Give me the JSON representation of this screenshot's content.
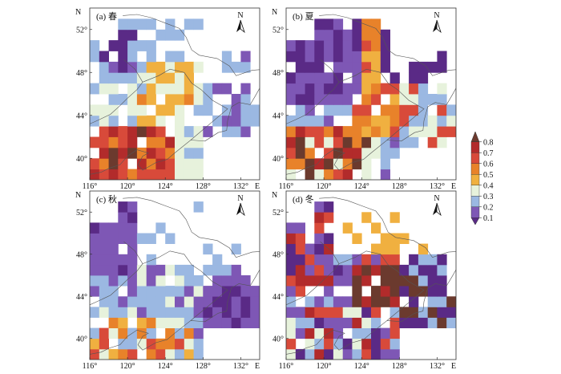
{
  "panels": [
    {
      "id": "a",
      "label": "(a) 春"
    },
    {
      "id": "b",
      "label": "(b) 夏"
    },
    {
      "id": "c",
      "label": "(c) 秋"
    },
    {
      "id": "d",
      "label": "(d) 冬"
    }
  ],
  "north_letter": "N",
  "east_letter": "E",
  "compass_letter": "N",
  "lat_ticks": [
    "52°",
    "48°",
    "44°",
    "40°"
  ],
  "lon_ticks": [
    "116°",
    "120°",
    "124°",
    "128°",
    "132°"
  ],
  "lat_values": [
    52,
    48,
    44,
    40
  ],
  "lon_values": [
    116,
    120,
    124,
    128,
    132
  ],
  "extent": {
    "lon_min": 116,
    "lon_max": 134,
    "lat_min": 38,
    "lat_max": 54
  },
  "colorbar": {
    "ticks": [
      "0.8",
      "0.7",
      "0.6",
      "0.5",
      "0.4",
      "0.3",
      "0.2",
      "0.1"
    ],
    "tick_values": [
      0.8,
      0.7,
      0.6,
      0.5,
      0.4,
      0.3,
      0.2,
      0.1
    ],
    "range": [
      0.05,
      0.85
    ],
    "colors": [
      "#5a2a86",
      "#7e57b5",
      "#9bb8e2",
      "#e7f2dc",
      "#f0b040",
      "#e8822a",
      "#d84a3a",
      "#b22b2b",
      "#6b3a2e"
    ]
  },
  "legend_colors": {
    "white": "#ffffff",
    "outline": "#333333"
  }
}
